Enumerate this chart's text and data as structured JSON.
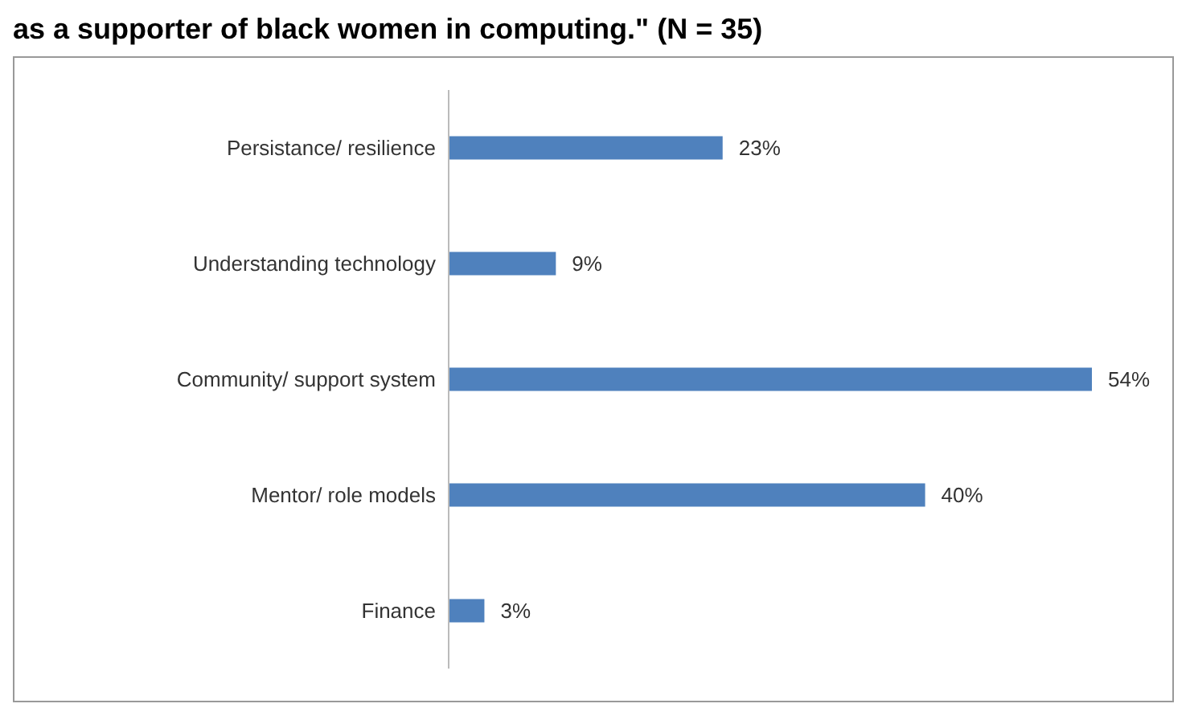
{
  "chart_data": {
    "type": "bar",
    "orientation": "horizontal",
    "title": "as a supporter of black women in computing.\" (N = 35)",
    "categories": [
      "Persistance/ resilience",
      "Understanding technology",
      "Community/ support system",
      "Mentor/ role models",
      "Finance"
    ],
    "values": [
      23,
      9,
      54,
      40,
      3
    ],
    "value_labels": [
      "23%",
      "9%",
      "54%",
      "40%",
      "3%"
    ],
    "color": "#4f81bd"
  }
}
